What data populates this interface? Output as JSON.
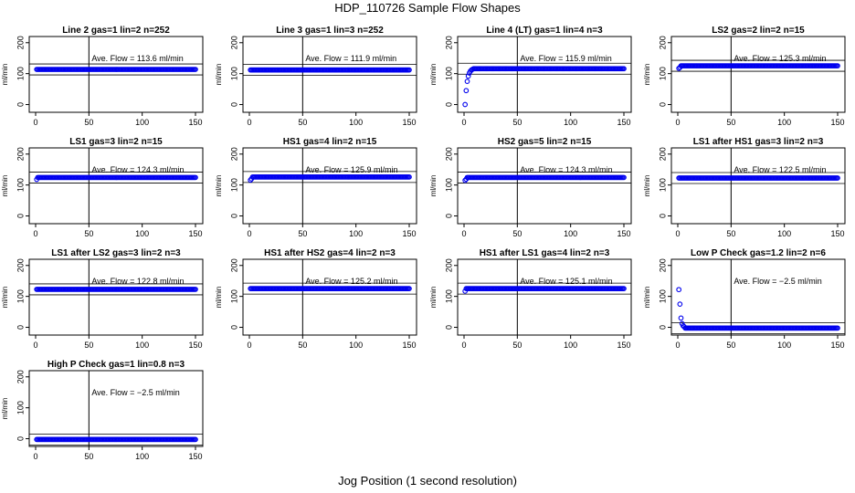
{
  "title": "HDP_110726  Sample Flow Shapes",
  "xlabel": "Jog Position (1 second resolution)",
  "chart_data": [
    {
      "type": "scatter",
      "title": "Line 2 gas=1 lin=2 n=252",
      "ylabel": "ml/min",
      "ave_label": "Ave. Flow =",
      "ave_value": 113.6,
      "unit": "ml/min",
      "xlim": [
        0,
        150
      ],
      "ylim": [
        -25,
        220
      ],
      "xticks": [
        0,
        50,
        100,
        150
      ],
      "yticks": [
        0,
        100,
        200
      ],
      "vline": 50,
      "startup": [],
      "level": 113.6
    },
    {
      "type": "scatter",
      "title": "Line 3 gas=1 lin=3 n=252",
      "ylabel": "ml/min",
      "ave_label": "Ave. Flow =",
      "ave_value": 111.9,
      "unit": "ml/min",
      "xlim": [
        0,
        150
      ],
      "ylim": [
        -25,
        220
      ],
      "xticks": [
        0,
        50,
        100,
        150
      ],
      "yticks": [
        0,
        100,
        200
      ],
      "vline": 50,
      "startup": [],
      "level": 111.9
    },
    {
      "type": "scatter",
      "title": "Line 4 (LT) gas=1 lin=4 n=3",
      "ylabel": "ml/min",
      "ave_label": "Ave. Flow =",
      "ave_value": 115.9,
      "unit": "ml/min",
      "xlim": [
        0,
        150
      ],
      "ylim": [
        -25,
        220
      ],
      "xticks": [
        0,
        50,
        100,
        150
      ],
      "yticks": [
        0,
        100,
        200
      ],
      "vline": 50,
      "startup": [
        [
          1,
          0
        ],
        [
          2,
          45
        ],
        [
          3,
          75
        ],
        [
          4,
          92
        ],
        [
          5,
          102
        ],
        [
          6,
          108
        ],
        [
          7,
          112
        ],
        [
          8,
          114
        ]
      ],
      "level": 115.9
    },
    {
      "type": "scatter",
      "title": "LS2 gas=2 lin=2 n=15",
      "ylabel": "ml/min",
      "ave_label": "Ave. Flow =",
      "ave_value": 125.3,
      "unit": "ml/min",
      "xlim": [
        0,
        150
      ],
      "ylim": [
        -25,
        220
      ],
      "xticks": [
        0,
        50,
        100,
        150
      ],
      "yticks": [
        0,
        100,
        200
      ],
      "vline": 50,
      "startup": [
        [
          1,
          117
        ],
        [
          2,
          120
        ]
      ],
      "level": 125.3
    },
    {
      "type": "scatter",
      "title": "LS1 gas=3 lin=2 n=15",
      "ylabel": "ml/min",
      "ave_label": "Ave. Flow =",
      "ave_value": 124.3,
      "unit": "ml/min",
      "xlim": [
        0,
        150
      ],
      "ylim": [
        -25,
        220
      ],
      "xticks": [
        0,
        50,
        100,
        150
      ],
      "yticks": [
        0,
        100,
        200
      ],
      "vline": 50,
      "startup": [
        [
          1,
          118
        ]
      ],
      "level": 124.3
    },
    {
      "type": "scatter",
      "title": "HS1 gas=4 lin=2 n=15",
      "ylabel": "ml/min",
      "ave_label": "Ave. Flow =",
      "ave_value": 125.9,
      "unit": "ml/min",
      "xlim": [
        0,
        150
      ],
      "ylim": [
        -25,
        220
      ],
      "xticks": [
        0,
        50,
        100,
        150
      ],
      "yticks": [
        0,
        100,
        200
      ],
      "vline": 50,
      "startup": [
        [
          1,
          116
        ],
        [
          2,
          120
        ]
      ],
      "level": 125.9
    },
    {
      "type": "scatter",
      "title": "HS2 gas=5 lin=2 n=15",
      "ylabel": "ml/min",
      "ave_label": "Ave. Flow =",
      "ave_value": 124.3,
      "unit": "ml/min",
      "xlim": [
        0,
        150
      ],
      "ylim": [
        -25,
        220
      ],
      "xticks": [
        0,
        50,
        100,
        150
      ],
      "yticks": [
        0,
        100,
        200
      ],
      "vline": 50,
      "startup": [
        [
          1,
          115
        ],
        [
          2,
          119
        ]
      ],
      "level": 124.3
    },
    {
      "type": "scatter",
      "title": "LS1 after HS1 gas=3 lin=2 n=3",
      "ylabel": "ml/min",
      "ave_label": "Ave. Flow =",
      "ave_value": 122.5,
      "unit": "ml/min",
      "xlim": [
        0,
        150
      ],
      "ylim": [
        -25,
        220
      ],
      "xticks": [
        0,
        50,
        100,
        150
      ],
      "yticks": [
        0,
        100,
        200
      ],
      "vline": 50,
      "startup": [],
      "level": 122.5
    },
    {
      "type": "scatter",
      "title": "LS1 after LS2 gas=3 lin=2 n=3",
      "ylabel": "ml/min",
      "ave_label": "Ave. Flow =",
      "ave_value": 122.8,
      "unit": "ml/min",
      "xlim": [
        0,
        150
      ],
      "ylim": [
        -25,
        220
      ],
      "xticks": [
        0,
        50,
        100,
        150
      ],
      "yticks": [
        0,
        100,
        200
      ],
      "vline": 50,
      "startup": [],
      "level": 122.8
    },
    {
      "type": "scatter",
      "title": "HS1 after HS2 gas=4 lin=2 n=3",
      "ylabel": "ml/min",
      "ave_label": "Ave. Flow =",
      "ave_value": 125.2,
      "unit": "ml/min",
      "xlim": [
        0,
        150
      ],
      "ylim": [
        -25,
        220
      ],
      "xticks": [
        0,
        50,
        100,
        150
      ],
      "yticks": [
        0,
        100,
        200
      ],
      "vline": 50,
      "startup": [],
      "level": 125.2
    },
    {
      "type": "scatter",
      "title": "HS1 after LS1 gas=4 lin=2 n=3",
      "ylabel": "ml/min",
      "ave_label": "Ave. Flow =",
      "ave_value": 125.1,
      "unit": "ml/min",
      "xlim": [
        0,
        150
      ],
      "ylim": [
        -25,
        220
      ],
      "xticks": [
        0,
        50,
        100,
        150
      ],
      "yticks": [
        0,
        100,
        200
      ],
      "vline": 50,
      "startup": [
        [
          1,
          117
        ]
      ],
      "level": 125.1
    },
    {
      "type": "scatter",
      "title": "Low P Check gas=1.2 lin=2 n=6",
      "ylabel": "ml/min",
      "ave_label": "Ave. Flow =",
      "ave_value": -2.5,
      "unit": "ml/min",
      "xlim": [
        0,
        150
      ],
      "ylim": [
        -25,
        220
      ],
      "xticks": [
        0,
        50,
        100,
        150
      ],
      "yticks": [
        0,
        100,
        200
      ],
      "vline": 50,
      "startup": [
        [
          1,
          122
        ],
        [
          2,
          75
        ],
        [
          3,
          30
        ],
        [
          4,
          12
        ],
        [
          5,
          5
        ],
        [
          6,
          2
        ]
      ],
      "level": -2.5
    },
    {
      "type": "scatter",
      "title": "High P Check gas=1 lin=0.8 n=3",
      "ylabel": "ml/min",
      "ave_label": "Ave. Flow =",
      "ave_value": -2.5,
      "unit": "ml/min",
      "xlim": [
        0,
        150
      ],
      "ylim": [
        -25,
        220
      ],
      "xticks": [
        0,
        50,
        100,
        150
      ],
      "yticks": [
        0,
        100,
        200
      ],
      "vline": 50,
      "startup": [],
      "level": -2.5
    }
  ],
  "colors": {
    "points": "#0000ee",
    "axes": "#000000",
    "text": "#000000",
    "background": "#ffffff"
  }
}
